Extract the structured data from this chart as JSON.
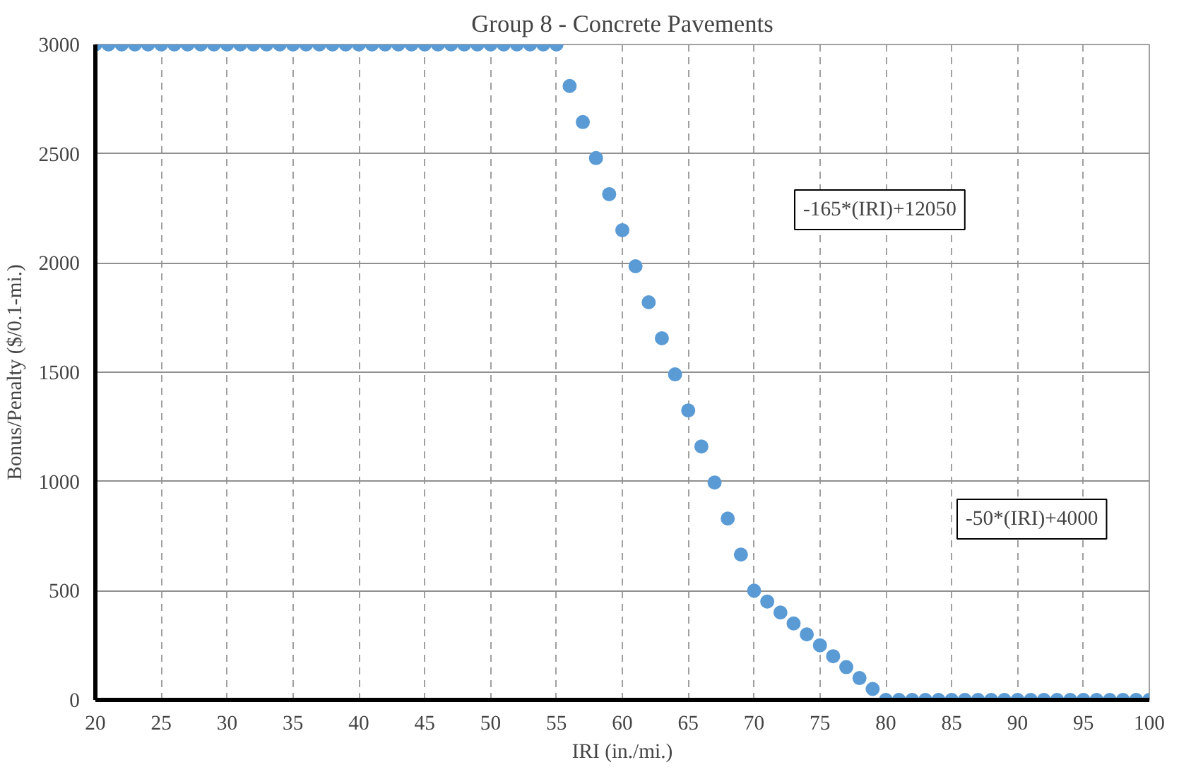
{
  "chart_data": {
    "type": "scatter",
    "title": "Group 8 - Concrete Pavements",
    "xlabel": "IRI (in./mi.)",
    "ylabel": "Bonus/Penalty ($/0.1-mi.)",
    "x": [
      20,
      21,
      22,
      23,
      24,
      25,
      26,
      27,
      28,
      29,
      30,
      31,
      32,
      33,
      34,
      35,
      36,
      37,
      38,
      39,
      40,
      41,
      42,
      43,
      44,
      45,
      46,
      47,
      48,
      49,
      50,
      51,
      52,
      53,
      54,
      55,
      56,
      57,
      58,
      59,
      60,
      61,
      62,
      63,
      64,
      65,
      66,
      67,
      68,
      69,
      70,
      71,
      72,
      73,
      74,
      75,
      76,
      77,
      78,
      79,
      80,
      81,
      82,
      83,
      84,
      85,
      86,
      87,
      88,
      89,
      90,
      91,
      92,
      93,
      94,
      95,
      96,
      97,
      98,
      99,
      100
    ],
    "series": [
      {
        "color": "#5b9bd5",
        "values": [
          3000,
          3000,
          3000,
          3000,
          3000,
          3000,
          3000,
          3000,
          3000,
          3000,
          3000,
          3000,
          3000,
          3000,
          3000,
          3000,
          3000,
          3000,
          3000,
          3000,
          3000,
          3000,
          3000,
          3000,
          3000,
          3000,
          3000,
          3000,
          3000,
          3000,
          3000,
          3000,
          3000,
          3000,
          3000,
          3000,
          2810,
          2645,
          2480,
          2315,
          2150,
          1985,
          1820,
          1655,
          1490,
          1325,
          1160,
          995,
          830,
          665,
          500,
          450,
          400,
          350,
          300,
          250,
          200,
          150,
          100,
          50,
          0,
          0,
          0,
          0,
          0,
          0,
          0,
          0,
          0,
          0,
          0,
          0,
          0,
          0,
          0,
          0,
          0,
          0,
          0,
          0,
          0
        ]
      }
    ],
    "xlim": [
      20,
      100
    ],
    "xticks": [
      20,
      25,
      30,
      35,
      40,
      45,
      50,
      55,
      60,
      65,
      70,
      75,
      80,
      85,
      90,
      95,
      100
    ],
    "ylim": [
      0,
      3000
    ],
    "yticks": [
      0,
      500,
      1000,
      1500,
      2000,
      2500,
      3000
    ],
    "grid": true,
    "marker": "circle",
    "annotations": [
      "-165*(IRI)+12050",
      "-50*(IRI)+4000"
    ]
  }
}
